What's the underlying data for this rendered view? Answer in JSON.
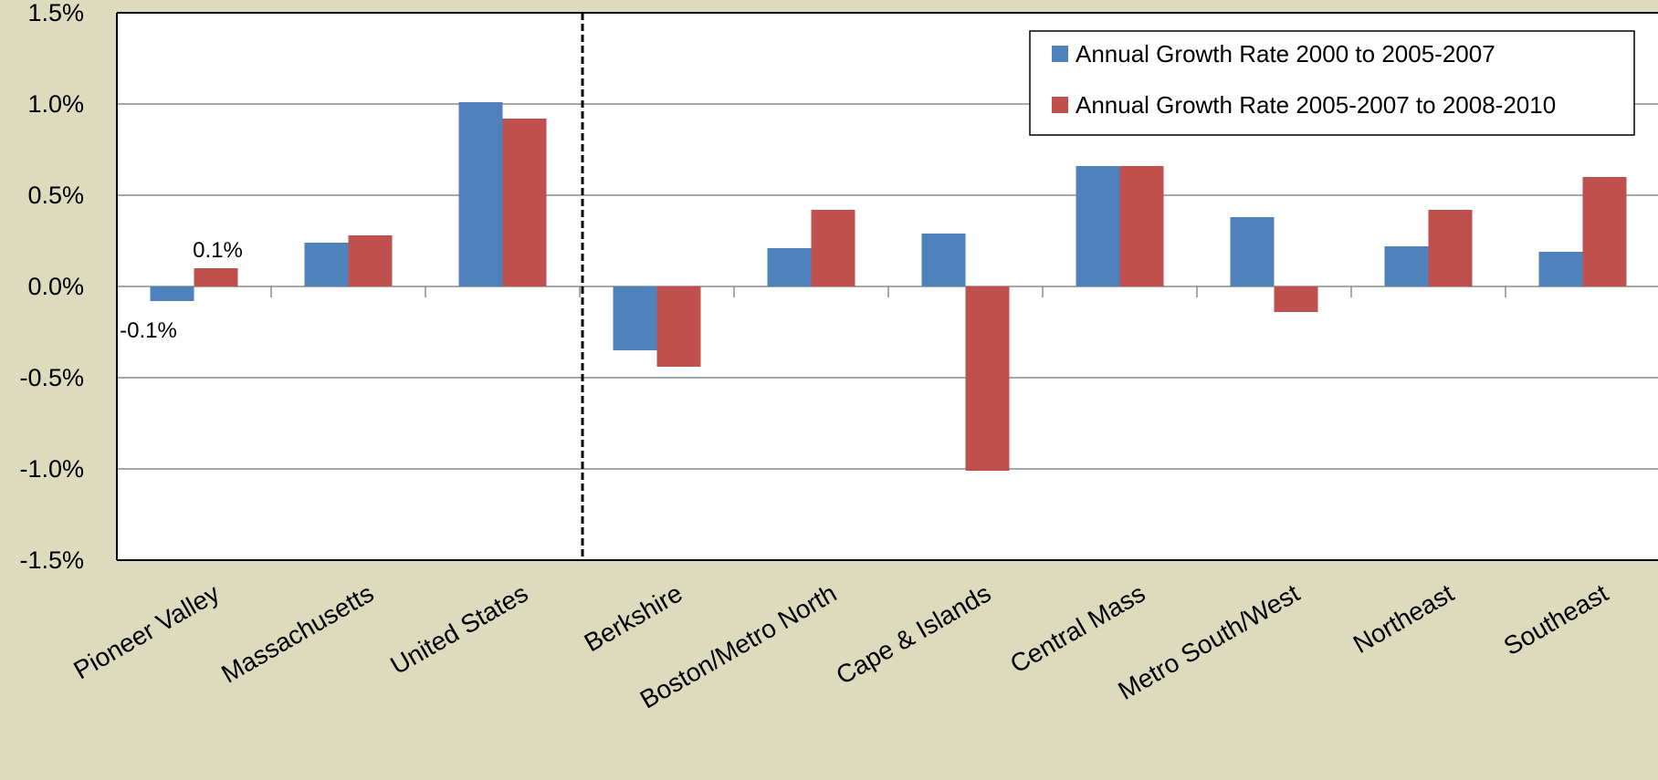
{
  "chart_data": {
    "type": "bar",
    "categories": [
      "Pioneer Valley",
      "Massachusetts",
      "United States",
      "Berkshire",
      "Boston/Metro North",
      "Cape & Islands",
      "Central Mass",
      "Metro South/West",
      "Northeast",
      "Southeast"
    ],
    "series": [
      {
        "name": "Annual Growth Rate 2000 to 2005-2007",
        "color": "#4F81BD",
        "values": [
          -0.0008,
          0.0024,
          0.0101,
          -0.0035,
          0.0021,
          0.0029,
          0.0066,
          0.0038,
          0.0022,
          0.0019
        ]
      },
      {
        "name": "Annual Growth Rate 2005-2007 to 2008-2010",
        "color": "#C0504D",
        "values": [
          0.001,
          0.0028,
          0.0092,
          -0.0044,
          0.0042,
          -0.0101,
          0.0066,
          -0.0014,
          0.0042,
          0.006
        ]
      }
    ],
    "ylim": [
      -0.015,
      0.015
    ],
    "yticks": [
      "-1.5%",
      "-1.0%",
      "-0.5%",
      "0.0%",
      "0.5%",
      "1.0%",
      "1.5%"
    ],
    "data_labels": [
      {
        "series": 0,
        "category": 0,
        "text": "-0.1%"
      },
      {
        "series": 1,
        "category": 0,
        "text": "0.1%"
      }
    ],
    "divider_after_category": 2,
    "legend_position": "top-right",
    "grid": true,
    "title": "",
    "xlabel": "",
    "ylabel": ""
  }
}
